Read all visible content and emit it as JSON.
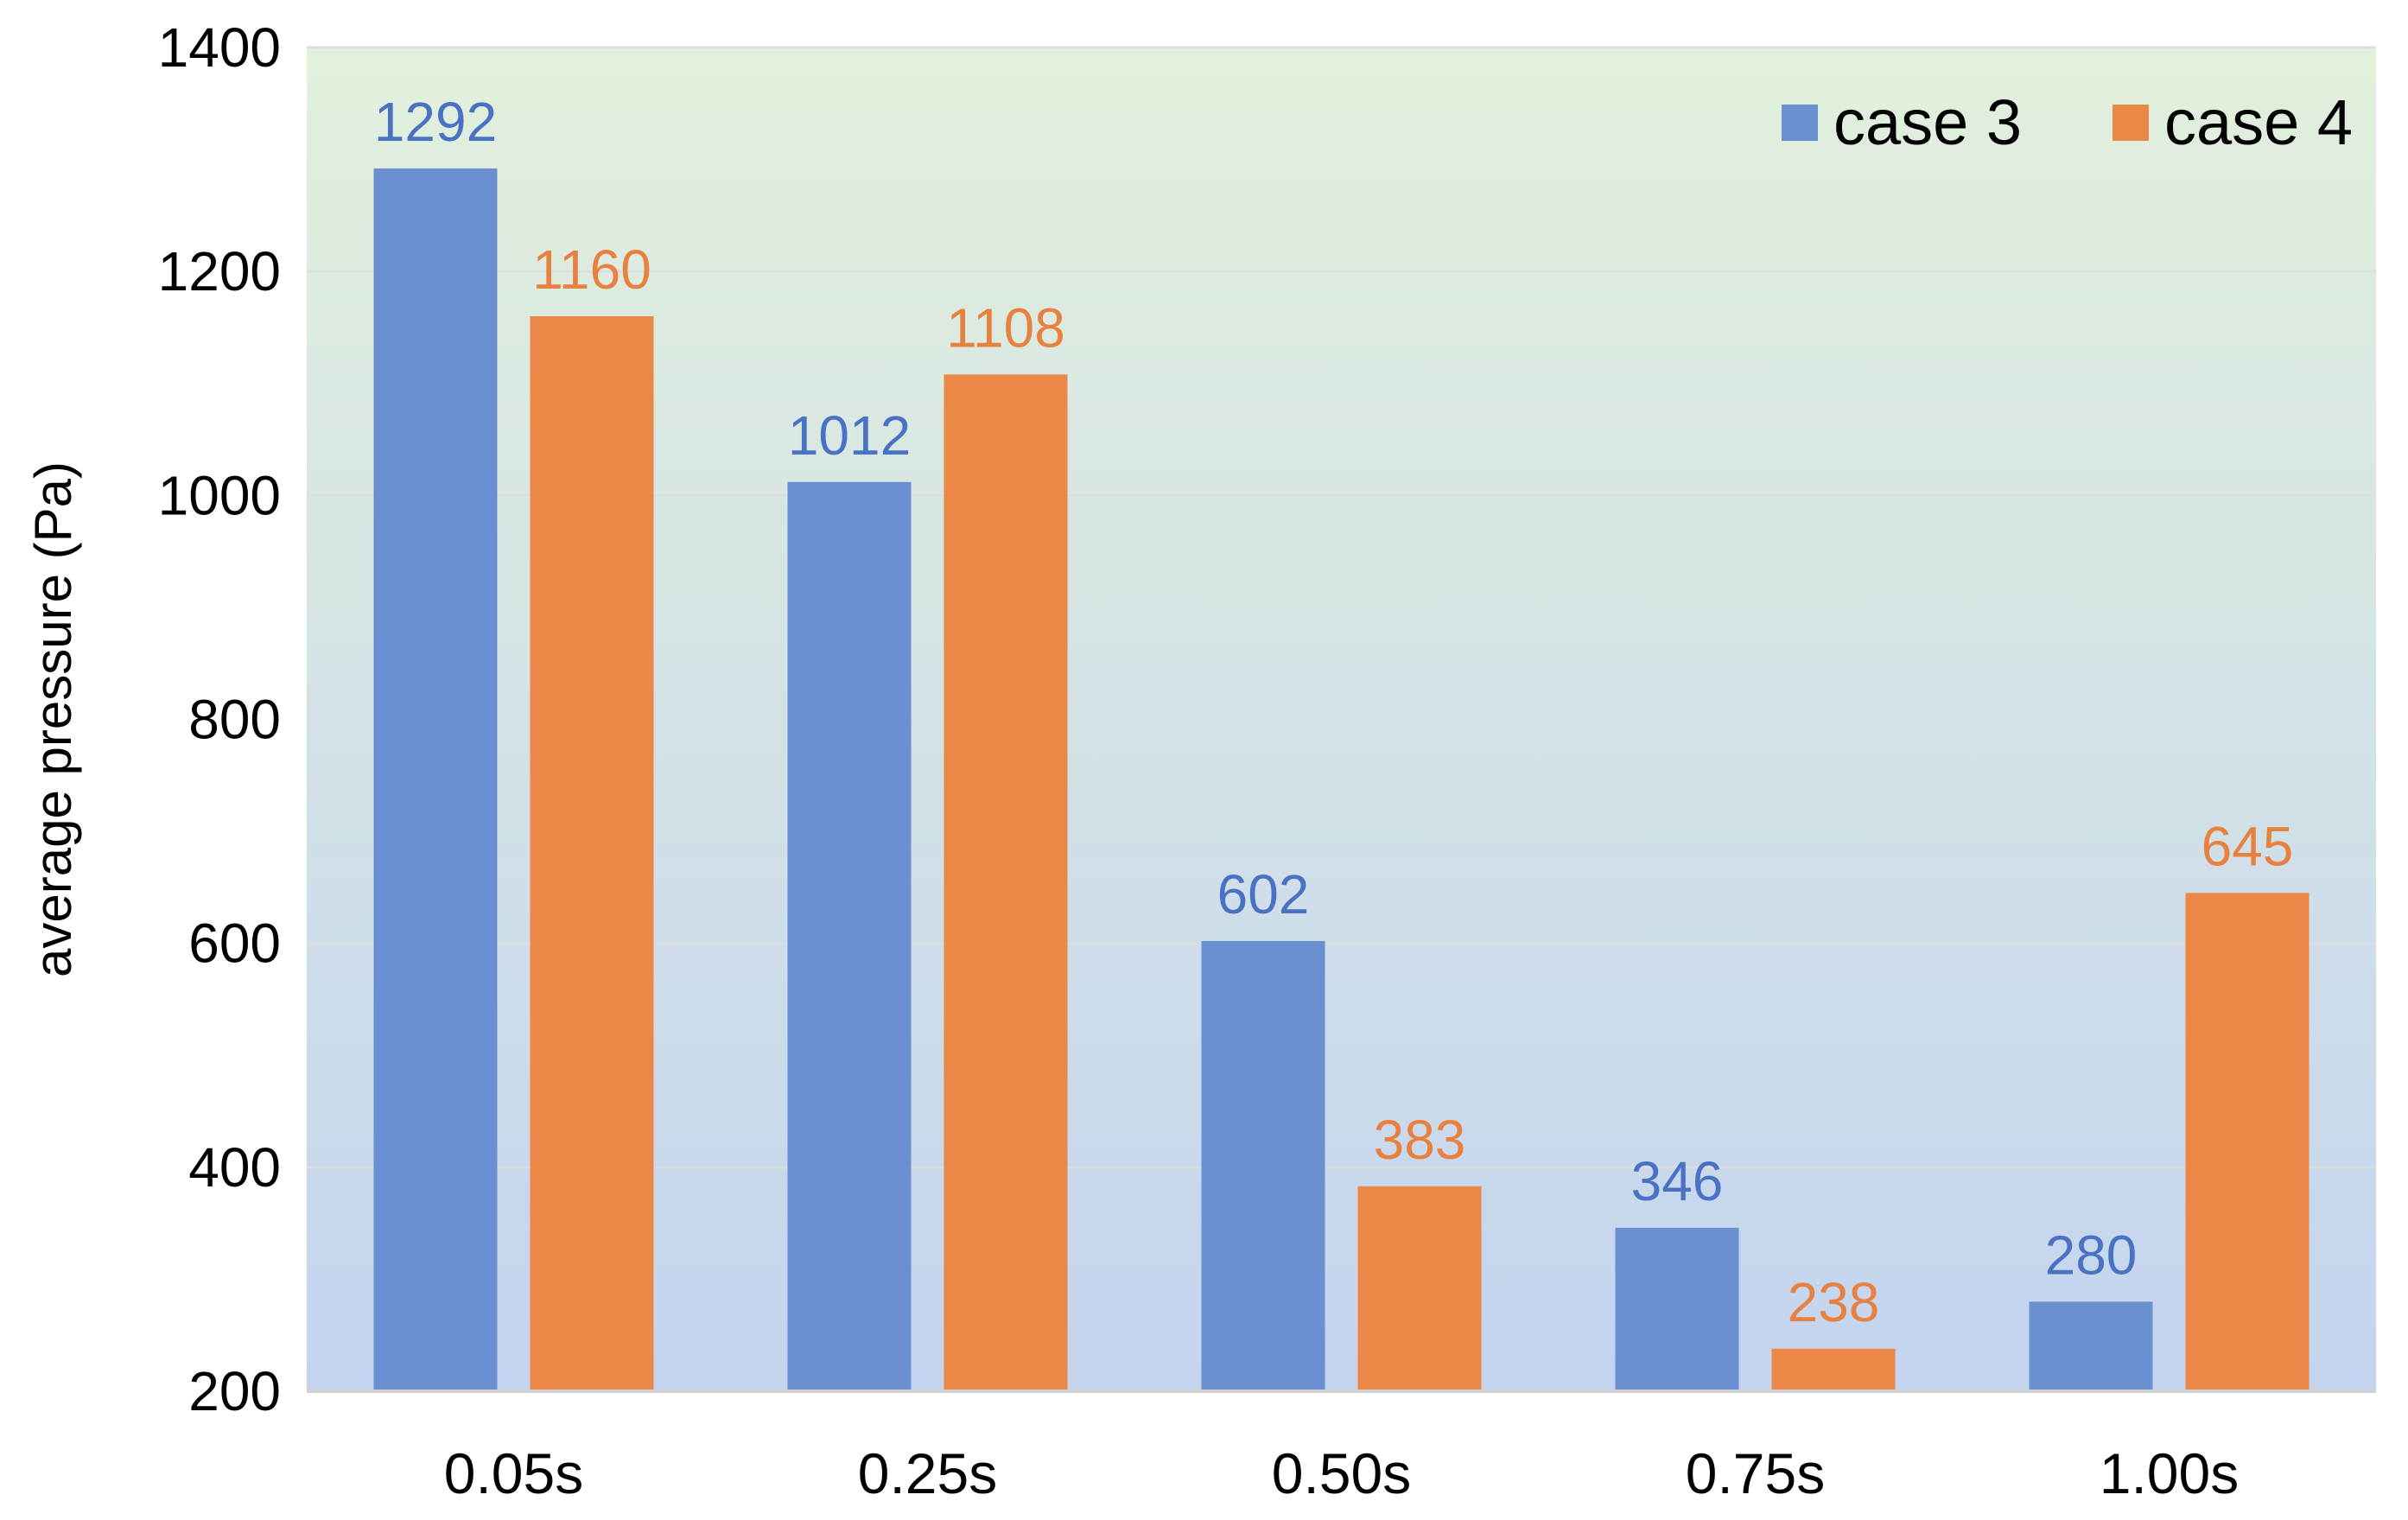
{
  "chart_data": {
    "type": "bar",
    "categories": [
      "0.05s",
      "0.25s",
      "0.50s",
      "0.75s",
      "1.00s"
    ],
    "series": [
      {
        "name": "case 3",
        "values": [
          1292,
          1012,
          602,
          346,
          280
        ],
        "color": "#6a90d1"
      },
      {
        "name": "case 4",
        "values": [
          1160,
          1108,
          383,
          238,
          645
        ],
        "color": "#eb8747"
      }
    ],
    "ylabel": "average pressure (Pa)",
    "xlabel": "",
    "ylim": [
      200,
      1400
    ],
    "yticks": [
      200,
      400,
      600,
      800,
      1000,
      1200,
      1400
    ],
    "grid": true,
    "legend_position": "top-right",
    "data_label_colors": {
      "case 3": "#4a72c4",
      "case 4": "#e8813f"
    },
    "background_gradient": [
      "#e2f0dc",
      "#c4d4ef"
    ]
  }
}
